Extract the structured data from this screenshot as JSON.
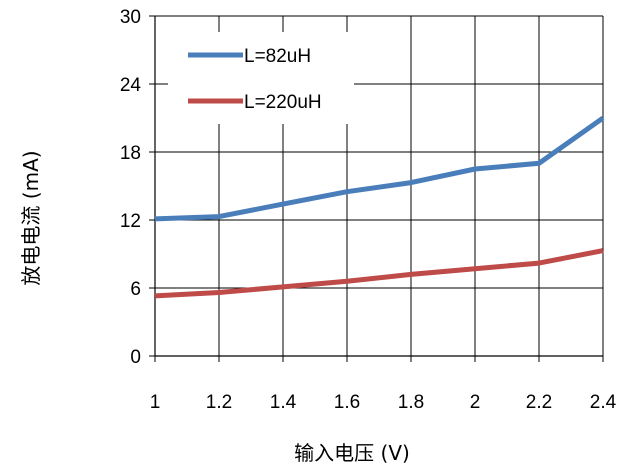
{
  "chart_data": {
    "type": "line",
    "xlabel": "输入电压 (V)",
    "ylabel": "放电电流 (mA)",
    "x": [
      1,
      1.2,
      1.4,
      1.6,
      1.8,
      2,
      2.2,
      2.4
    ],
    "x_ticks": [
      "1",
      "1.2",
      "1.4",
      "1.6",
      "1.8",
      "2",
      "2.2",
      "2.4"
    ],
    "y_ticks": [
      "0",
      "6",
      "12",
      "18",
      "24",
      "30"
    ],
    "xlim": [
      1,
      2.4
    ],
    "ylim": [
      0,
      30
    ],
    "grid": true,
    "legend_position": "top-left",
    "series": [
      {
        "name": "L=82uH",
        "color": "#4a7ebb",
        "values": [
          12.1,
          12.3,
          13.4,
          14.5,
          15.3,
          16.5,
          17.0,
          21.0
        ]
      },
      {
        "name": "L=220uH",
        "color": "#be4b48",
        "values": [
          5.3,
          5.6,
          6.1,
          6.6,
          7.2,
          7.7,
          8.2,
          9.3
        ]
      }
    ]
  }
}
